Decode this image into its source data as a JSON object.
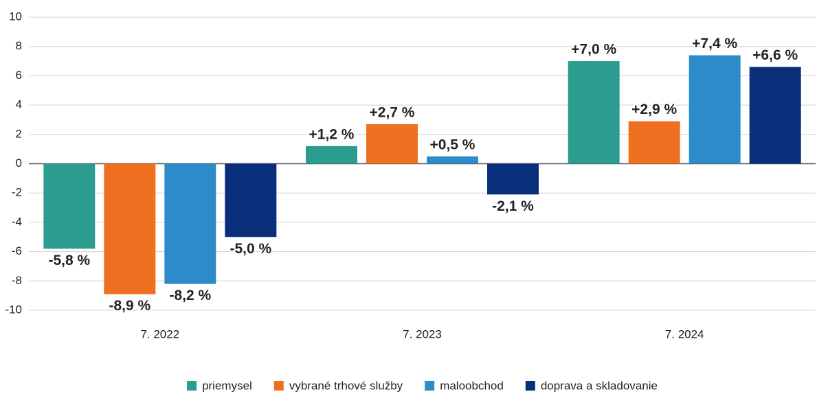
{
  "chart_data": {
    "type": "bar",
    "categories": [
      "7. 2022",
      "7. 2023",
      "7. 2024"
    ],
    "series": [
      {
        "name": "priemysel",
        "color": "#2a9d8f",
        "values": [
          -5.8,
          1.2,
          7.0
        ],
        "value_labels": [
          "-5,8 %",
          "+1,2 %",
          "+7,0 %"
        ]
      },
      {
        "name": "vybrané trhové služby",
        "color": "#f07021",
        "values": [
          -8.9,
          2.7,
          2.9
        ],
        "value_labels": [
          "-8,9 %",
          "+2,7 %",
          "+2,9 %"
        ]
      },
      {
        "name": "maloobchod",
        "color": "#2e8bc9",
        "values": [
          -8.2,
          0.5,
          7.4
        ],
        "value_labels": [
          "-8,2 %",
          "+0,5 %",
          "+7,4 %"
        ]
      },
      {
        "name": "doprava a skladovanie",
        "color": "#0a2f7a",
        "values": [
          -5.0,
          -2.1,
          6.6
        ],
        "value_labels": [
          "-5,0 %",
          "-2,1 %",
          "+6,6 %"
        ]
      }
    ],
    "ylim": [
      -10,
      10
    ],
    "yticks": [
      -10,
      -8,
      -6,
      -4,
      -2,
      0,
      2,
      4,
      6,
      8,
      10
    ],
    "grid": true,
    "legend": "bottom"
  }
}
